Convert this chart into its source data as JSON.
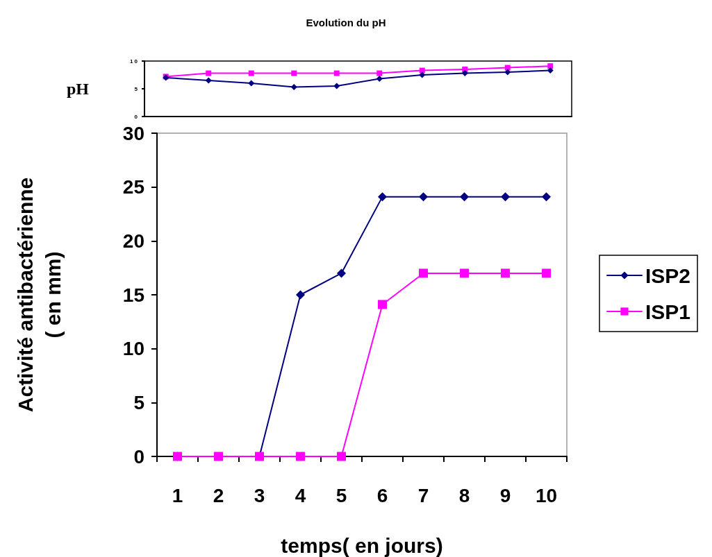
{
  "chart_data": [
    {
      "type": "line",
      "title": "Evolution du pH",
      "ylabel": "pH",
      "categories": [
        null,
        null,
        null,
        null,
        null,
        null,
        null,
        null,
        null,
        null
      ],
      "ylim": [
        0,
        10
      ],
      "yticks": [
        0,
        5,
        {
          "value": 10,
          "label": "1 0"
        }
      ],
      "tick_labels": "y",
      "grid": false,
      "legend": false,
      "series": [
        {
          "color": "#000080",
          "marker": "diamond",
          "values": [
            7,
            6.5,
            6,
            5.3,
            5.5,
            6.8,
            7.5,
            7.8,
            8,
            8.3
          ]
        },
        {
          "color": "#ff00ff",
          "marker": "square",
          "values": [
            7.2,
            7.8,
            7.8,
            7.8,
            7.8,
            7.8,
            8.3,
            8.5,
            8.8,
            9.1
          ]
        }
      ]
    },
    {
      "type": "line",
      "xlabel": "temps( en jours)",
      "ylabel": "Activité antibactérienne\n( en mm)",
      "categories": [
        "1",
        "2",
        "3",
        "4",
        "5",
        "6",
        "7",
        "8",
        "9",
        "10"
      ],
      "ylim": [
        0,
        30
      ],
      "yticks": [
        0,
        5,
        10,
        15,
        20,
        25,
        30
      ],
      "grid": false,
      "legend": "right",
      "series": [
        {
          "name": "ISP2",
          "color": "#000080",
          "marker": "diamond",
          "values": [
            0,
            0,
            0,
            15,
            17,
            24.1,
            24.1,
            24.1,
            24.1,
            24.1
          ]
        },
        {
          "name": "ISP1",
          "color": "#ff00ff",
          "marker": "square",
          "values": [
            0,
            0,
            0,
            0,
            0,
            14.1,
            17,
            17,
            17,
            17
          ]
        }
      ]
    }
  ]
}
